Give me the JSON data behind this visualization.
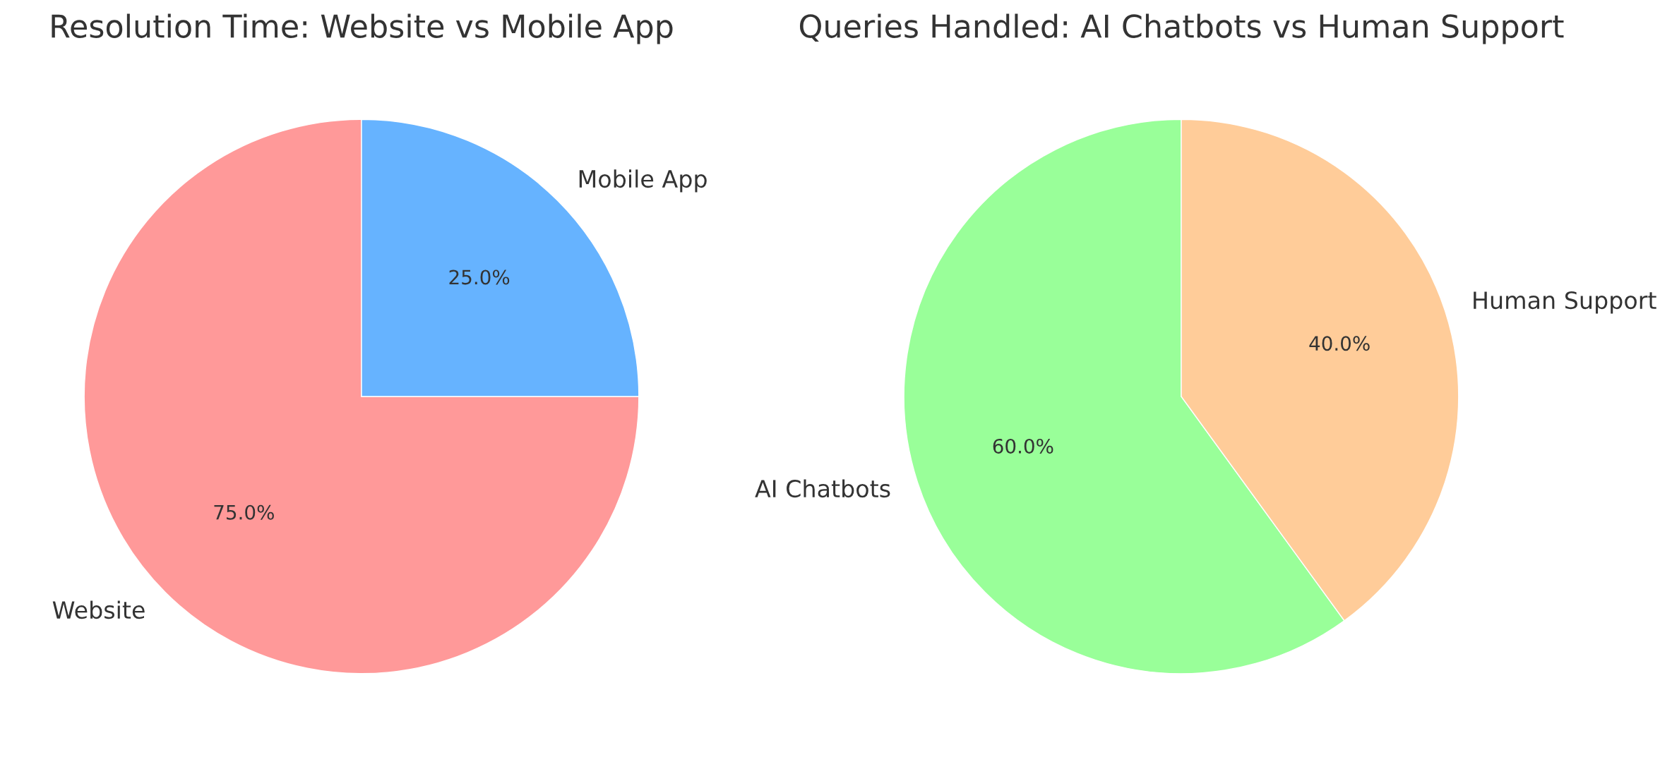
{
  "chart_data": [
    {
      "type": "pie",
      "title": "Resolution Time: Website vs Mobile App",
      "categories": [
        "Website",
        "Mobile App"
      ],
      "values": [
        75,
        25
      ],
      "colors": [
        "#ff9999",
        "#66b3ff"
      ],
      "value_labels": [
        "75.0%",
        "25.0%"
      ]
    },
    {
      "type": "pie",
      "title": "Queries Handled: AI Chatbots vs Human Support",
      "categories": [
        "AI Chatbots",
        "Human Support"
      ],
      "values": [
        60,
        40
      ],
      "colors": [
        "#99ff99",
        "#ffcc99"
      ],
      "value_labels": [
        "60.0%",
        "40.0%"
      ]
    }
  ]
}
